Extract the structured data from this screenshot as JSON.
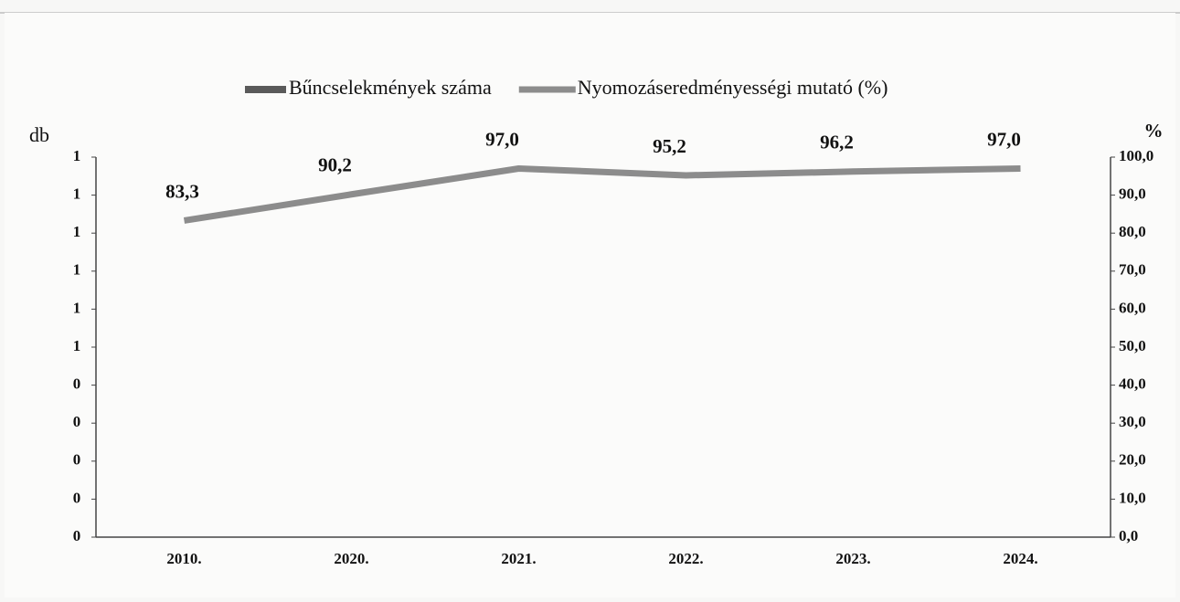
{
  "chart_data": {
    "type": "combo",
    "categories": [
      "2010.",
      "2020.",
      "2021.",
      "2022.",
      "2023.",
      "2024."
    ],
    "series": [
      {
        "name": "Bűncselekmények száma",
        "type": "bar",
        "axis": "y",
        "color": "#5a5a5a",
        "values": [
          null,
          null,
          null,
          null,
          null,
          null
        ]
      },
      {
        "name": "Nyomozáseredményességi mutató (%)",
        "type": "line",
        "axis": "y2",
        "color": "#8c8c8c",
        "values": [
          83.3,
          90.2,
          97.0,
          95.2,
          96.2,
          97.0
        ],
        "value_labels": [
          "83,3",
          "90,2",
          "97,0",
          "95,2",
          "96,2",
          "97,0"
        ]
      }
    ],
    "y_label": "db",
    "y2_label": "%",
    "ylim": [
      0,
      1
    ],
    "yticks": [
      {
        "value": 0,
        "label": "0"
      },
      {
        "value": 0.1,
        "label": "0"
      },
      {
        "value": 0.2,
        "label": "0"
      },
      {
        "value": 0.3,
        "label": "0"
      },
      {
        "value": 0.4,
        "label": "0"
      },
      {
        "value": 0.5,
        "label": "1"
      },
      {
        "value": 0.6,
        "label": "1"
      },
      {
        "value": 0.7,
        "label": "1"
      },
      {
        "value": 0.8,
        "label": "1"
      },
      {
        "value": 0.9,
        "label": "1"
      },
      {
        "value": 1,
        "label": "1"
      }
    ],
    "y2lim": [
      0,
      100
    ],
    "y2ticks": [
      {
        "value": 0,
        "label": "0,0"
      },
      {
        "value": 10,
        "label": "10,0"
      },
      {
        "value": 20,
        "label": "20,0"
      },
      {
        "value": 30,
        "label": "30,0"
      },
      {
        "value": 40,
        "label": "40,0"
      },
      {
        "value": 50,
        "label": "50,0"
      },
      {
        "value": 60,
        "label": "60,0"
      },
      {
        "value": 70,
        "label": "70,0"
      },
      {
        "value": 80,
        "label": "80,0"
      },
      {
        "value": 90,
        "label": "90,0"
      },
      {
        "value": 100,
        "label": "100,0"
      }
    ],
    "grid": false
  }
}
